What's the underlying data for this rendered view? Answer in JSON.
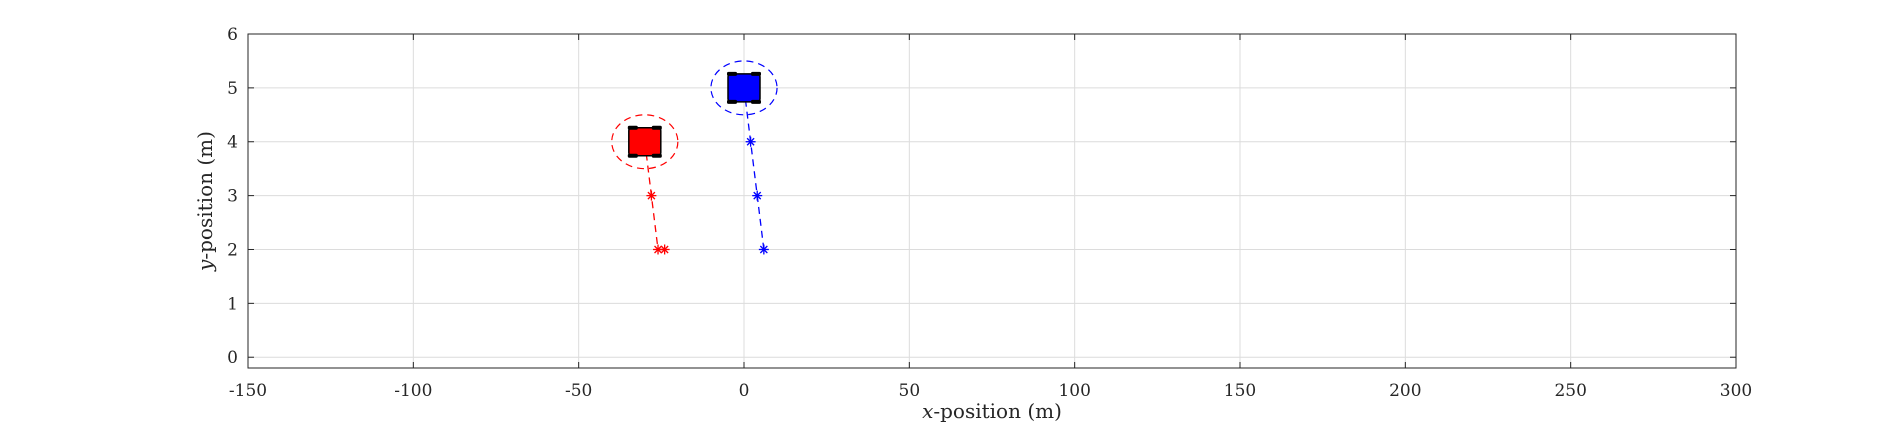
{
  "chart_data": {
    "type": "scatter",
    "title": "",
    "xlabel": {
      "var": "x",
      "rest": "-position (m)"
    },
    "ylabel": {
      "var": "y",
      "rest": "-position (m)"
    },
    "xlim": [
      -150,
      300
    ],
    "ylim": [
      -0.2,
      6
    ],
    "xticks": [
      -150,
      -100,
      -50,
      0,
      50,
      100,
      150,
      200,
      250,
      300
    ],
    "yticks": [
      0,
      1,
      2,
      3,
      4,
      5,
      6
    ],
    "xtick_labels": [
      "-150",
      "-100",
      "-50",
      "0",
      "50",
      "100",
      "150",
      "200",
      "250",
      "300"
    ],
    "ytick_labels": [
      "0",
      "1",
      "2",
      "3",
      "4",
      "5",
      "6"
    ],
    "grid": true,
    "series": [
      {
        "color": "#ff0000",
        "vehicle": {
          "x": -30,
          "y": 4
        },
        "safety_ellipse": {
          "rx": 10,
          "ry": 0.5
        },
        "path": [
          {
            "x": -30,
            "y": 4
          },
          {
            "x": -28,
            "y": 3
          },
          {
            "x": -26,
            "y": 2
          },
          {
            "x": -24,
            "y": 2
          }
        ],
        "markers": [
          {
            "x": -28,
            "y": 3
          },
          {
            "x": -26,
            "y": 2
          },
          {
            "x": -24,
            "y": 2
          }
        ]
      },
      {
        "color": "#0000ff",
        "vehicle": {
          "x": 0,
          "y": 5
        },
        "safety_ellipse": {
          "rx": 10,
          "ry": 0.5
        },
        "path": [
          {
            "x": 0,
            "y": 5
          },
          {
            "x": 2,
            "y": 4
          },
          {
            "x": 4,
            "y": 3
          },
          {
            "x": 6,
            "y": 2
          }
        ],
        "markers": [
          {
            "x": 2,
            "y": 4
          },
          {
            "x": 4,
            "y": 3
          },
          {
            "x": 6,
            "y": 2
          }
        ]
      }
    ]
  }
}
